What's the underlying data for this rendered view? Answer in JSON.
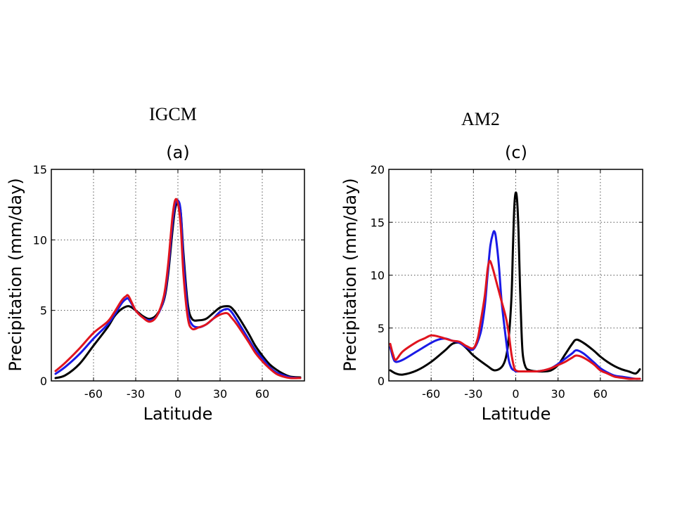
{
  "labels": {
    "left_model": "IGCM",
    "right_model": "AM2"
  },
  "colors": {
    "black": "#000000",
    "blue": "#1a1ae6",
    "red": "#e0141e",
    "grid": "#555555"
  },
  "chart_data": [
    {
      "type": "line",
      "title": "(a)",
      "xlabel": "Latitude",
      "ylabel": "Precipitation (mm/day)",
      "xlim": [
        -90,
        90
      ],
      "ylim": [
        0,
        15
      ],
      "xticks": [
        -60,
        -30,
        0,
        30,
        60
      ],
      "yticks": [
        0,
        5,
        10,
        15
      ],
      "grid": true,
      "series": [
        {
          "color": "black",
          "x": [
            -87,
            -80,
            -70,
            -60,
            -50,
            -45,
            -40,
            -35,
            -30,
            -25,
            -20,
            -15,
            -10,
            -7,
            -4,
            -2,
            0,
            2,
            4,
            7,
            10,
            15,
            20,
            25,
            30,
            35,
            38,
            42,
            50,
            55,
            60,
            65,
            70,
            75,
            80,
            87
          ],
          "y": [
            0.2,
            0.4,
            1.2,
            2.5,
            3.8,
            4.6,
            5.1,
            5.3,
            5.0,
            4.6,
            4.4,
            4.7,
            5.7,
            7.5,
            10.5,
            12.2,
            12.6,
            12.0,
            9.0,
            5.5,
            4.4,
            4.3,
            4.4,
            4.8,
            5.2,
            5.3,
            5.2,
            4.7,
            3.4,
            2.5,
            1.8,
            1.2,
            0.8,
            0.5,
            0.3,
            0.25
          ]
        },
        {
          "color": "blue",
          "x": [
            -87,
            -80,
            -70,
            -60,
            -50,
            -45,
            -40,
            -37,
            -35,
            -30,
            -25,
            -20,
            -15,
            -10,
            -7,
            -4,
            -2,
            0,
            2,
            4,
            7,
            10,
            15,
            20,
            25,
            30,
            35,
            38,
            42,
            50,
            55,
            60,
            65,
            70,
            75,
            80,
            87
          ],
          "y": [
            0.5,
            1.0,
            1.9,
            3.0,
            4.0,
            4.7,
            5.5,
            5.8,
            5.8,
            5.0,
            4.5,
            4.3,
            4.6,
            5.8,
            7.8,
            11.0,
            12.5,
            12.8,
            12.0,
            8.5,
            5.0,
            4.0,
            3.8,
            4.0,
            4.4,
            4.9,
            5.1,
            4.9,
            4.3,
            3.0,
            2.2,
            1.6,
            1.0,
            0.6,
            0.4,
            0.25,
            0.2
          ]
        },
        {
          "color": "red",
          "x": [
            -87,
            -80,
            -70,
            -60,
            -50,
            -45,
            -40,
            -37,
            -35,
            -30,
            -25,
            -20,
            -15,
            -10,
            -7,
            -4,
            -2,
            0,
            2,
            4,
            7,
            10,
            15,
            20,
            25,
            30,
            35,
            38,
            42,
            50,
            55,
            60,
            65,
            70,
            75,
            80,
            87
          ],
          "y": [
            0.7,
            1.3,
            2.3,
            3.4,
            4.2,
            4.9,
            5.7,
            6.0,
            6.0,
            5.0,
            4.5,
            4.2,
            4.6,
            6.0,
            8.2,
            11.5,
            12.8,
            12.6,
            11.0,
            7.5,
            4.5,
            3.7,
            3.8,
            4.0,
            4.4,
            4.7,
            4.8,
            4.5,
            4.0,
            2.8,
            2.0,
            1.4,
            0.9,
            0.5,
            0.3,
            0.2,
            0.2
          ]
        }
      ]
    },
    {
      "type": "line",
      "title": "(c)",
      "xlabel": "Latitude",
      "ylabel": "Precipitation (mm/day)",
      "xlim": [
        -90,
        90
      ],
      "ylim": [
        0,
        20
      ],
      "xticks": [
        -60,
        -30,
        0,
        30,
        60
      ],
      "yticks": [
        0,
        5,
        10,
        15,
        20
      ],
      "grid": true,
      "series": [
        {
          "color": "black",
          "x": [
            -89,
            -85,
            -80,
            -70,
            -60,
            -50,
            -45,
            -40,
            -35,
            -30,
            -20,
            -15,
            -10,
            -7,
            -5,
            -3,
            -2,
            -1,
            0,
            1,
            2,
            3,
            4,
            5,
            7,
            10,
            15,
            20,
            25,
            30,
            35,
            40,
            43,
            48,
            55,
            60,
            65,
            70,
            75,
            80,
            85,
            88
          ],
          "y": [
            1.0,
            0.7,
            0.6,
            1.0,
            1.8,
            2.9,
            3.5,
            3.6,
            3.1,
            2.4,
            1.4,
            1.0,
            1.3,
            2.2,
            4.0,
            8.0,
            12.5,
            16.5,
            17.8,
            17.0,
            14.0,
            9.0,
            5.0,
            2.5,
            1.3,
            1.0,
            0.9,
            0.9,
            1.0,
            1.5,
            2.5,
            3.5,
            3.9,
            3.6,
            2.9,
            2.3,
            1.8,
            1.4,
            1.1,
            0.9,
            0.7,
            1.1
          ]
        },
        {
          "color": "blue",
          "x": [
            -89,
            -87,
            -85,
            -80,
            -70,
            -60,
            -55,
            -50,
            -45,
            -40,
            -35,
            -30,
            -25,
            -22,
            -20,
            -18,
            -16,
            -15,
            -14,
            -12,
            -10,
            -7,
            -5,
            -3,
            -1,
            0,
            2,
            5,
            10,
            15,
            20,
            25,
            30,
            35,
            40,
            43,
            48,
            55,
            60,
            65,
            70,
            75,
            80,
            85,
            88
          ],
          "y": [
            3.2,
            2.2,
            1.8,
            2.0,
            2.8,
            3.6,
            3.9,
            4.0,
            3.8,
            3.6,
            3.2,
            3.0,
            4.5,
            7.0,
            10.0,
            12.8,
            14.0,
            14.1,
            13.5,
            11.0,
            7.5,
            4.0,
            2.0,
            1.2,
            1.0,
            0.9,
            0.9,
            0.9,
            0.9,
            0.9,
            1.0,
            1.2,
            1.6,
            2.1,
            2.6,
            2.9,
            2.6,
            1.8,
            1.2,
            0.8,
            0.5,
            0.4,
            0.3,
            0.2,
            0.2
          ]
        },
        {
          "color": "red",
          "x": [
            -89,
            -87,
            -85,
            -80,
            -70,
            -65,
            -60,
            -55,
            -50,
            -45,
            -40,
            -35,
            -30,
            -27,
            -25,
            -22,
            -20,
            -19,
            -18,
            -16,
            -14,
            -12,
            -10,
            -7,
            -5,
            -3,
            -1,
            0,
            2,
            5,
            10,
            15,
            20,
            25,
            30,
            35,
            40,
            43,
            48,
            55,
            60,
            65,
            70,
            75,
            80,
            85,
            88
          ],
          "y": [
            3.5,
            2.5,
            2.0,
            2.8,
            3.7,
            4.0,
            4.3,
            4.2,
            4.0,
            3.8,
            3.7,
            3.3,
            3.1,
            4.0,
            5.5,
            8.0,
            10.5,
            11.2,
            11.3,
            10.5,
            9.5,
            8.5,
            7.5,
            6.0,
            4.5,
            2.5,
            1.2,
            1.0,
            0.9,
            0.9,
            0.9,
            0.9,
            1.0,
            1.2,
            1.5,
            1.8,
            2.2,
            2.4,
            2.2,
            1.6,
            1.0,
            0.7,
            0.4,
            0.3,
            0.2,
            0.2,
            0.2
          ]
        }
      ]
    }
  ]
}
